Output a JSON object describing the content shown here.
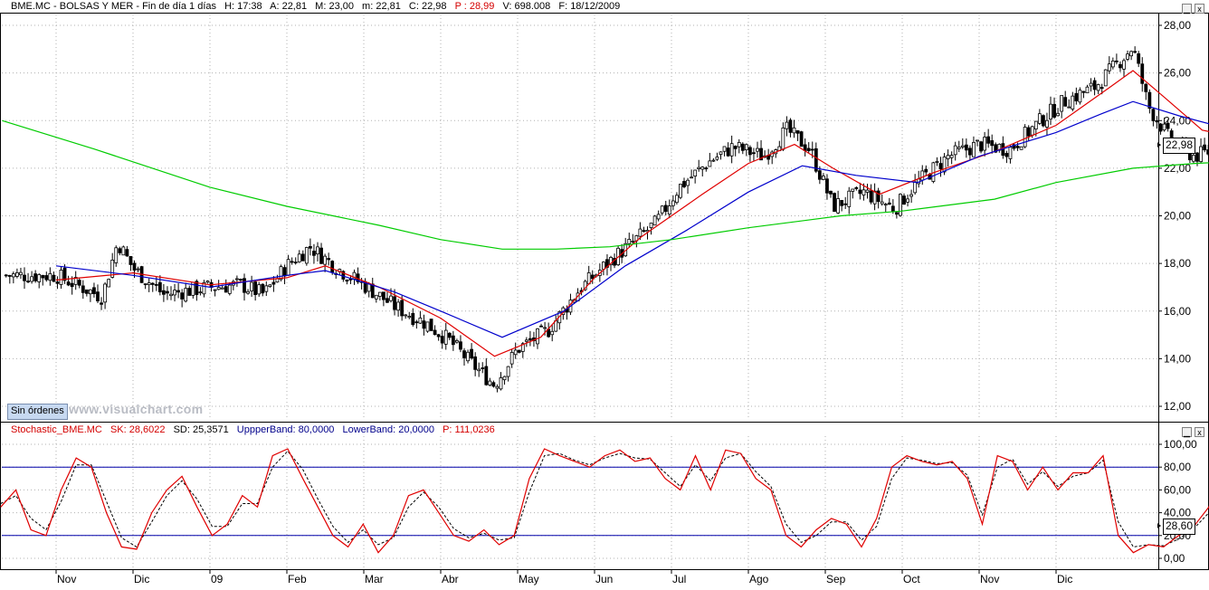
{
  "price_header": {
    "symbol": "BME.MC - BOLSAS Y MER - Fin de día 1 días",
    "time": "H: 17:38",
    "open": "A: 22,81",
    "high": "M: 23,00",
    "low": "m: 22,81",
    "close": "C: 22,98",
    "p": "P : 28,99",
    "volume": "V: 698.008",
    "date": "F: 18/12/2009"
  },
  "stoch_header": {
    "name": "Stochastic_BME.MC",
    "sk": "SK: 28,6022",
    "sd": "SD: 25,3571",
    "upper": "UppperBand: 80,0000",
    "lower": "LowerBand: 20,0000",
    "p": "P: 111,0236"
  },
  "controls": {
    "minimize": "▁",
    "close": "x"
  },
  "sin_ordenes": "Sin órdenes",
  "watermark": "www.visualchart.com",
  "last_price_label": "22,98",
  "last_stoch_label": "28,60",
  "colors": {
    "bull": "#000000",
    "bear": "#000000",
    "ma_fast": "#e00000",
    "ma_mid": "#0000cc",
    "ma_slow": "#00cc00",
    "sk": "#e00000",
    "sd": "#000000",
    "bands": "#0000aa",
    "grid": "#b0b0b0"
  },
  "chart_data": [
    {
      "type": "candlestick",
      "title": "BME.MC - BOLSAS Y MER",
      "x_tick_labels": [
        "Nov",
        "Dic",
        "09",
        "Feb",
        "Mar",
        "Abr",
        "May",
        "Jun",
        "Jul",
        "Ago",
        "Sep",
        "Oct",
        "Nov",
        "Dic"
      ],
      "y_tick_labels": [
        "12,00",
        "14,00",
        "16,00",
        "18,00",
        "20,00",
        "22,00",
        "24,00",
        "26,00",
        "28,00"
      ],
      "ylim": [
        11.5,
        28.5
      ],
      "grid": true,
      "y_axis_side": "right",
      "last_value": 22.98,
      "close_anchors": [
        {
          "month": 0,
          "value": 17.5
        },
        {
          "month": 0.6,
          "value": 16.6
        },
        {
          "month": 0.8,
          "value": 18.9
        },
        {
          "month": 1.0,
          "value": 17.8
        },
        {
          "month": 1.4,
          "value": 16.7
        },
        {
          "month": 2.0,
          "value": 17.0
        },
        {
          "month": 2.4,
          "value": 17.1
        },
        {
          "month": 2.7,
          "value": 16.7
        },
        {
          "month": 3.0,
          "value": 17.9
        },
        {
          "month": 3.3,
          "value": 18.7
        },
        {
          "month": 3.7,
          "value": 17.7
        },
        {
          "month": 4.0,
          "value": 17.1
        },
        {
          "month": 4.4,
          "value": 16.2
        },
        {
          "month": 4.8,
          "value": 15.5
        },
        {
          "month": 5.1,
          "value": 14.8
        },
        {
          "month": 5.4,
          "value": 13.8
        },
        {
          "month": 5.7,
          "value": 12.9
        },
        {
          "month": 6.0,
          "value": 14.4
        },
        {
          "month": 6.4,
          "value": 15.2
        },
        {
          "month": 6.8,
          "value": 16.9
        },
        {
          "month": 7.2,
          "value": 18.1
        },
        {
          "month": 7.5,
          "value": 18.9
        },
        {
          "month": 7.8,
          "value": 19.7
        },
        {
          "month": 8.1,
          "value": 21.2
        },
        {
          "month": 8.5,
          "value": 22.3
        },
        {
          "month": 8.8,
          "value": 22.9
        },
        {
          "month": 9.2,
          "value": 22.5
        },
        {
          "month": 9.5,
          "value": 23.6
        },
        {
          "month": 9.8,
          "value": 22.8
        },
        {
          "month": 10.1,
          "value": 20.4
        },
        {
          "month": 10.5,
          "value": 21.0
        },
        {
          "month": 10.9,
          "value": 20.3
        },
        {
          "month": 11.2,
          "value": 21.4
        },
        {
          "month": 11.6,
          "value": 22.5
        },
        {
          "month": 12.0,
          "value": 23.0
        },
        {
          "month": 12.4,
          "value": 22.8
        },
        {
          "month": 12.8,
          "value": 24.0
        },
        {
          "month": 13.1,
          "value": 24.8
        },
        {
          "month": 13.5,
          "value": 25.4
        },
        {
          "month": 13.8,
          "value": 26.4
        },
        {
          "month": 14.0,
          "value": 27.1
        },
        {
          "month": 14.2,
          "value": 24.6
        },
        {
          "month": 14.5,
          "value": 23.1
        },
        {
          "month": 14.8,
          "value": 22.5
        },
        {
          "month": 15.2,
          "value": 22.9
        },
        {
          "month": 15.5,
          "value": 23.6
        },
        {
          "month": 15.8,
          "value": 24.2
        },
        {
          "month": 16.1,
          "value": 23.6
        },
        {
          "month": 16.4,
          "value": 23.7
        },
        {
          "month": 16.7,
          "value": 22.7
        },
        {
          "month": 16.9,
          "value": 22.98
        }
      ],
      "moving_averages": [
        {
          "color": "red",
          "points": [
            {
              "month": 0,
              "value": 17.3
            },
            {
              "month": 1.0,
              "value": 17.6
            },
            {
              "month": 2.0,
              "value": 17.1
            },
            {
              "month": 3.0,
              "value": 17.4
            },
            {
              "month": 3.5,
              "value": 17.9
            },
            {
              "month": 4.2,
              "value": 17.0
            },
            {
              "month": 5.0,
              "value": 15.7
            },
            {
              "month": 5.7,
              "value": 14.1
            },
            {
              "month": 6.3,
              "value": 14.9
            },
            {
              "month": 7.0,
              "value": 17.4
            },
            {
              "month": 7.6,
              "value": 19.1
            },
            {
              "month": 8.4,
              "value": 20.9
            },
            {
              "month": 9.0,
              "value": 22.2
            },
            {
              "month": 9.6,
              "value": 23.0
            },
            {
              "month": 10.1,
              "value": 22.0
            },
            {
              "month": 10.7,
              "value": 20.9
            },
            {
              "month": 11.4,
              "value": 21.8
            },
            {
              "month": 12.2,
              "value": 22.7
            },
            {
              "month": 13.0,
              "value": 23.8
            },
            {
              "month": 13.7,
              "value": 25.4
            },
            {
              "month": 14.0,
              "value": 26.1
            },
            {
              "month": 14.4,
              "value": 25.0
            },
            {
              "month": 14.9,
              "value": 23.6
            },
            {
              "month": 15.5,
              "value": 23.2
            },
            {
              "month": 16.2,
              "value": 23.7
            },
            {
              "month": 16.9,
              "value": 23.1
            }
          ]
        },
        {
          "color": "blue",
          "points": [
            {
              "month": 0,
              "value": 17.9
            },
            {
              "month": 1.0,
              "value": 17.5
            },
            {
              "month": 2.0,
              "value": 17.0
            },
            {
              "month": 3.0,
              "value": 17.5
            },
            {
              "month": 3.5,
              "value": 17.7
            },
            {
              "month": 4.4,
              "value": 16.8
            },
            {
              "month": 5.0,
              "value": 16.0
            },
            {
              "month": 5.8,
              "value": 14.9
            },
            {
              "month": 6.6,
              "value": 16.0
            },
            {
              "month": 7.4,
              "value": 17.9
            },
            {
              "month": 8.2,
              "value": 19.4
            },
            {
              "month": 9.0,
              "value": 21.0
            },
            {
              "month": 9.7,
              "value": 22.1
            },
            {
              "month": 10.4,
              "value": 21.7
            },
            {
              "month": 11.2,
              "value": 21.4
            },
            {
              "month": 12.0,
              "value": 22.5
            },
            {
              "month": 13.0,
              "value": 23.5
            },
            {
              "month": 13.6,
              "value": 24.3
            },
            {
              "month": 14.0,
              "value": 24.8
            },
            {
              "month": 14.6,
              "value": 24.2
            },
            {
              "month": 15.3,
              "value": 23.6
            },
            {
              "month": 16.2,
              "value": 23.6
            },
            {
              "month": 16.9,
              "value": 23.4
            }
          ]
        },
        {
          "color": "green",
          "points": [
            {
              "month": -0.7,
              "value": 24.0
            },
            {
              "month": 0.5,
              "value": 22.8
            },
            {
              "month": 2.0,
              "value": 21.2
            },
            {
              "month": 3.0,
              "value": 20.4
            },
            {
              "month": 4.2,
              "value": 19.6
            },
            {
              "month": 5.0,
              "value": 19.0
            },
            {
              "month": 5.8,
              "value": 18.6
            },
            {
              "month": 6.5,
              "value": 18.6
            },
            {
              "month": 7.2,
              "value": 18.7
            },
            {
              "month": 8.0,
              "value": 19.0
            },
            {
              "month": 9.0,
              "value": 19.5
            },
            {
              "month": 10.2,
              "value": 20.0
            },
            {
              "month": 11.0,
              "value": 20.2
            },
            {
              "month": 12.2,
              "value": 20.7
            },
            {
              "month": 13.0,
              "value": 21.4
            },
            {
              "month": 14.0,
              "value": 22.0
            },
            {
              "month": 14.8,
              "value": 22.2
            },
            {
              "month": 15.5,
              "value": 22.3
            },
            {
              "month": 16.2,
              "value": 22.45
            },
            {
              "month": 16.9,
              "value": 22.5
            }
          ]
        }
      ]
    },
    {
      "type": "line",
      "title": "Stochastic_BME.MC",
      "y_tick_labels": [
        "0,00",
        "20,00",
        "40,00",
        "60,00",
        "80,00",
        "100,00"
      ],
      "ylim": [
        -5,
        105
      ],
      "bands": [
        80,
        20
      ],
      "grid": true,
      "last_value": 28.6,
      "series": [
        {
          "name": "SK",
          "values": [
            45,
            60,
            25,
            20,
            60,
            88,
            80,
            40,
            10,
            8,
            40,
            60,
            72,
            45,
            20,
            30,
            55,
            45,
            90,
            96,
            70,
            45,
            20,
            10,
            30,
            5,
            20,
            55,
            60,
            40,
            20,
            15,
            25,
            12,
            20,
            70,
            96,
            90,
            85,
            80,
            90,
            95,
            85,
            88,
            70,
            60,
            90,
            60,
            95,
            92,
            70,
            60,
            20,
            10,
            25,
            35,
            30,
            10,
            35,
            80,
            90,
            85,
            82,
            85,
            70,
            30,
            90,
            85,
            60,
            80,
            60,
            75,
            75,
            90,
            20,
            5,
            12,
            10,
            20,
            28,
            45,
            80,
            88,
            70,
            88,
            50,
            40,
            60,
            45,
            10,
            28
          ]
        },
        {
          "name": "SD",
          "values": [
            48,
            55,
            35,
            25,
            50,
            82,
            82,
            50,
            18,
            10,
            32,
            55,
            68,
            52,
            28,
            28,
            48,
            48,
            80,
            94,
            78,
            52,
            28,
            14,
            25,
            12,
            18,
            45,
            58,
            45,
            26,
            18,
            22,
            16,
            18,
            58,
            90,
            92,
            86,
            82,
            88,
            92,
            88,
            87,
            75,
            63,
            82,
            68,
            88,
            92,
            76,
            63,
            30,
            14,
            20,
            32,
            32,
            16,
            28,
            70,
            88,
            86,
            83,
            84,
            73,
            38,
            80,
            87,
            65,
            76,
            63,
            72,
            75,
            86,
            32,
            10,
            12,
            11,
            17,
            26,
            40,
            73,
            85,
            74,
            84,
            58,
            45,
            55,
            48,
            16,
            25
          ]
        }
      ]
    }
  ]
}
